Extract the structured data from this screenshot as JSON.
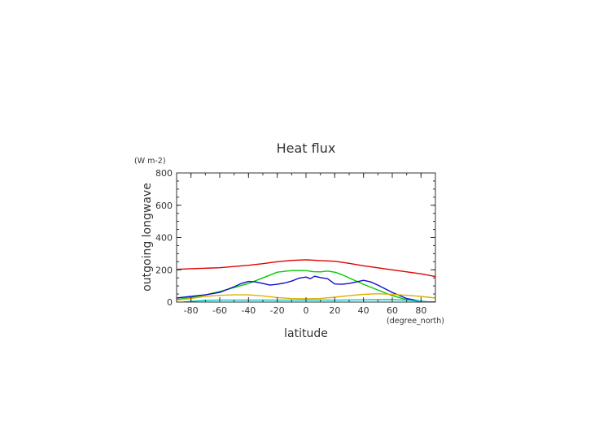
{
  "chart_data": {
    "type": "line",
    "title": "Heat flux",
    "xlabel": "latitude",
    "ylabel": "outgoing longwave",
    "x_unit": "(degree_north)",
    "y_unit": "(W m-2)",
    "xlim": [
      -90,
      90
    ],
    "ylim": [
      0,
      800
    ],
    "xticks": [
      "-80",
      "-60",
      "-40",
      "-20",
      "0",
      "20",
      "40",
      "60",
      "80"
    ],
    "yticks": [
      "0",
      "200",
      "400",
      "600",
      "800"
    ],
    "grid": false,
    "series": [
      {
        "color": "#e00000",
        "x": [
          -90,
          -80,
          -60,
          -40,
          -30,
          -20,
          -10,
          0,
          10,
          20,
          30,
          40,
          60,
          80,
          90
        ],
        "y": [
          203,
          207,
          213,
          228,
          238,
          250,
          258,
          262,
          257,
          253,
          240,
          225,
          200,
          175,
          158
        ]
      },
      {
        "color": "#00cc00",
        "x": [
          -90,
          -80,
          -70,
          -60,
          -50,
          -40,
          -30,
          -20,
          -10,
          0,
          5,
          10,
          15,
          20,
          25,
          30,
          40,
          50,
          60,
          70,
          80,
          90
        ],
        "y": [
          15,
          28,
          45,
          65,
          90,
          115,
          150,
          185,
          195,
          195,
          188,
          187,
          192,
          185,
          170,
          150,
          110,
          75,
          40,
          15,
          2,
          0
        ]
      },
      {
        "color": "#1010c8",
        "x": [
          -90,
          -80,
          -70,
          -60,
          -50,
          -45,
          -40,
          -35,
          -30,
          -25,
          -20,
          -15,
          -10,
          -5,
          0,
          3,
          6,
          10,
          15,
          20,
          25,
          30,
          35,
          40,
          45,
          50,
          60,
          70,
          80,
          85,
          90
        ],
        "y": [
          25,
          35,
          45,
          60,
          95,
          115,
          128,
          125,
          115,
          105,
          110,
          118,
          130,
          148,
          155,
          145,
          160,
          152,
          145,
          112,
          110,
          115,
          125,
          135,
          125,
          105,
          60,
          22,
          5,
          0,
          0
        ]
      },
      {
        "color": "#e0b000",
        "x": [
          -90,
          -80,
          -70,
          -60,
          -50,
          -40,
          -30,
          -20,
          -10,
          0,
          10,
          20,
          30,
          40,
          50,
          60,
          70,
          80,
          90
        ],
        "y": [
          12,
          22,
          35,
          42,
          45,
          45,
          38,
          28,
          22,
          20,
          22,
          30,
          40,
          48,
          52,
          48,
          42,
          35,
          25
        ]
      },
      {
        "color": "#00c8c8",
        "x": [
          -90,
          -85,
          -80,
          -70,
          -60,
          -40,
          -20,
          0,
          20,
          40,
          60,
          70,
          80,
          85,
          90
        ],
        "y": [
          -5,
          0,
          5,
          10,
          12,
          12,
          12,
          12,
          12,
          14,
          15,
          12,
          6,
          2,
          -4
        ]
      }
    ]
  }
}
